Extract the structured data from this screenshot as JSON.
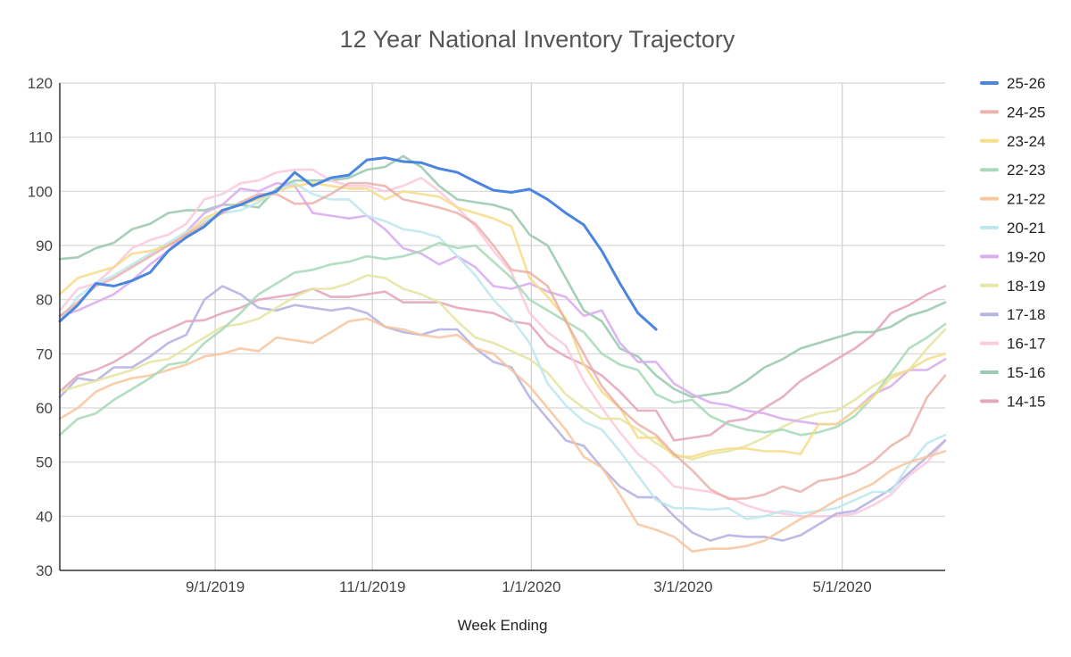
{
  "chart_data": {
    "type": "line",
    "title": "12 Year National Inventory Trajectory",
    "xlabel": "Week Ending",
    "ylabel": "",
    "ylim": [
      30,
      120
    ],
    "yticks": [
      30,
      40,
      50,
      60,
      70,
      80,
      90,
      100,
      110,
      120
    ],
    "x_week_count": 50,
    "x_ticks": [
      {
        "label": "9/1/2019",
        "week": 8.6
      },
      {
        "label": "11/1/2019",
        "week": 17.3
      },
      {
        "label": "1/1/2020",
        "week": 26.1
      },
      {
        "label": "3/1/2020",
        "week": 34.5
      },
      {
        "label": "5/1/2020",
        "week": 43.3
      }
    ],
    "grid": true,
    "legend_position": "right",
    "series": [
      {
        "name": "25-26",
        "color": "#4a86e0",
        "opacity": 1.0,
        "width": 3,
        "values": [
          76,
          79,
          83,
          82.5,
          83.5,
          85,
          89,
          91.5,
          93.5,
          96.5,
          97.5,
          99,
          100,
          103.5,
          101,
          102.5,
          103,
          105.8,
          106.2,
          105.5,
          105.3,
          104.2,
          103.5,
          101.8,
          100.2,
          99.8,
          100.4,
          98.5,
          96,
          93.8,
          89,
          83,
          77.5,
          74.5
        ]
      },
      {
        "name": "24-25",
        "color": "#e8a29b",
        "opacity": 0.72,
        "width": 2.6,
        "values": [
          77,
          79.5,
          82.5,
          84,
          86,
          88,
          90,
          92,
          94,
          96,
          98,
          99.5,
          99.5,
          97.7,
          97.8,
          99.5,
          101.5,
          101.5,
          101,
          98.5,
          97.8,
          97,
          96,
          94,
          90,
          85.5,
          85,
          82.5,
          76,
          70,
          64,
          60,
          57,
          55,
          51.5,
          48.5,
          45,
          43.2,
          43.3,
          44,
          45.5,
          44.5,
          46.5,
          47,
          48,
          50,
          53,
          55,
          62,
          66
        ]
      },
      {
        "name": "23-24",
        "color": "#f7dc85",
        "opacity": 0.85,
        "width": 2.6,
        "values": [
          81,
          84,
          85,
          86,
          88.5,
          89,
          90,
          92,
          95,
          96.5,
          97.5,
          98.5,
          100,
          101,
          101.5,
          101,
          100.5,
          100.5,
          98.5,
          100,
          99.5,
          99,
          97,
          96,
          95,
          93.5,
          84,
          80.5,
          76.5,
          68,
          63,
          60,
          54.5,
          54.5,
          51,
          51,
          52,
          52.5,
          52.5,
          52,
          52,
          51.5,
          57,
          57,
          59.5,
          62,
          65.5,
          67,
          69,
          70
        ]
      },
      {
        "name": "22-23",
        "color": "#a5d8b6",
        "opacity": 0.85,
        "width": 2.6,
        "values": [
          55,
          58,
          59,
          61.5,
          63.5,
          65.5,
          68,
          68.5,
          72,
          74.5,
          77.5,
          81,
          83,
          85,
          85.5,
          86.5,
          87,
          88,
          87.5,
          88,
          89,
          90.5,
          89.5,
          90,
          87,
          84,
          80,
          78,
          76,
          74,
          70,
          68,
          67,
          62.5,
          61,
          61.5,
          58.5,
          57,
          56,
          55.5,
          56,
          55,
          55.5,
          56.5,
          58.5,
          62,
          66.5,
          71,
          73,
          75.5
        ]
      },
      {
        "name": "21-22",
        "color": "#f8c49d",
        "opacity": 0.85,
        "width": 2.6,
        "values": [
          58,
          60,
          63,
          64.5,
          65.5,
          66,
          67,
          68,
          69.5,
          70,
          71,
          70.5,
          73,
          72.5,
          72,
          74,
          76,
          76.5,
          75,
          74.5,
          73.5,
          73,
          73.5,
          71,
          70,
          67,
          64,
          60,
          56,
          51,
          49,
          44,
          38.5,
          37.5,
          36.2,
          33.5,
          34,
          34,
          34.5,
          35.5,
          37.5,
          39.5,
          41,
          43,
          44.5,
          46,
          48.5,
          50,
          51,
          52
        ]
      },
      {
        "name": "20-21",
        "color": "#bfe8ee",
        "opacity": 0.9,
        "width": 2.6,
        "values": [
          76,
          80.5,
          83,
          84.5,
          86.5,
          88.5,
          90.5,
          92.5,
          94.5,
          96,
          96.5,
          98,
          100,
          101.5,
          99.5,
          98.5,
          98.5,
          95.5,
          94.5,
          93,
          92.5,
          91.5,
          88,
          84.5,
          80,
          76.5,
          72,
          64.5,
          60.5,
          57.5,
          56,
          52,
          47.5,
          43,
          41.5,
          41.5,
          41.2,
          41.5,
          39.5,
          40,
          41,
          40.5,
          41,
          41.5,
          43,
          44.5,
          44.5,
          49.5,
          53.5,
          55
        ]
      },
      {
        "name": "19-20",
        "color": "#d9aef0",
        "opacity": 0.9,
        "width": 2.6,
        "values": [
          77,
          78,
          79.5,
          81,
          83.5,
          86.5,
          89,
          92.5,
          96,
          97.5,
          100.5,
          100,
          101.5,
          101,
          96,
          95.5,
          95,
          95.5,
          93,
          89.5,
          88.5,
          86.5,
          88,
          86,
          82.5,
          82,
          83,
          81.5,
          80.5,
          77,
          78,
          72,
          68.5,
          68.5,
          64.5,
          62.5,
          61,
          60.5,
          59.5,
          59,
          58,
          57.5,
          57,
          57,
          59.5,
          62.5,
          64,
          67,
          67,
          69
        ]
      },
      {
        "name": "18-19",
        "color": "#e6e6a5",
        "opacity": 0.9,
        "width": 2.6,
        "values": [
          63,
          64,
          65,
          66,
          67,
          68.5,
          69,
          71,
          73,
          75,
          75.5,
          76.5,
          78.5,
          80.5,
          82,
          82,
          83,
          84.5,
          84,
          82,
          81,
          79.5,
          76,
          73,
          72,
          70.5,
          69,
          66.5,
          62.5,
          60,
          58,
          58,
          56,
          53.5,
          51.5,
          50.5,
          51.5,
          52,
          53,
          54.5,
          56.5,
          58,
          59,
          59.5,
          61.5,
          64,
          66,
          67,
          71,
          74.5
        ]
      },
      {
        "name": "17-18",
        "color": "#b6b4e2",
        "opacity": 0.9,
        "width": 2.6,
        "values": [
          62,
          65.5,
          65,
          67.5,
          67.5,
          69.5,
          72,
          73.5,
          80,
          82.5,
          81,
          78.5,
          78,
          79,
          78.5,
          78,
          78.5,
          77.5,
          75,
          74,
          73.5,
          74.5,
          74.5,
          71,
          68.5,
          67.5,
          62,
          58,
          54,
          53,
          49,
          45.5,
          43.5,
          43.5,
          40,
          37,
          35.5,
          36.5,
          36.2,
          36.2,
          35.5,
          36.5,
          38.5,
          40.5,
          41,
          43,
          45,
          48,
          51,
          54
        ]
      },
      {
        "name": "16-17",
        "color": "#fbcbe0",
        "opacity": 0.9,
        "width": 2.6,
        "values": [
          78,
          82,
          83,
          86,
          89.5,
          91,
          92,
          94,
          98.5,
          99.5,
          101.5,
          102,
          103.5,
          104,
          104,
          102,
          101,
          101,
          100,
          101,
          102.5,
          100,
          97,
          93.5,
          89,
          85,
          77.5,
          74,
          71.5,
          65,
          60,
          55.5,
          51.5,
          49,
          45.5,
          45,
          44.5,
          43.5,
          42,
          41,
          40.5,
          40,
          40,
          40,
          40.5,
          42,
          44,
          47.5,
          50,
          54
        ]
      },
      {
        "name": "15-16",
        "color": "#9ccab0",
        "opacity": 0.9,
        "width": 2.6,
        "values": [
          87.5,
          87.8,
          89.5,
          90.5,
          93,
          94,
          96,
          96.5,
          96.5,
          97.5,
          97.5,
          97,
          100.5,
          102,
          102,
          102,
          102.5,
          104,
          104.5,
          106.5,
          104.5,
          101,
          98.5,
          98,
          97.5,
          96.5,
          92,
          90,
          84,
          78,
          76,
          71,
          69.5,
          66,
          63.5,
          62,
          62.5,
          63,
          65,
          67.5,
          69,
          71,
          72,
          73,
          74,
          74,
          75,
          77,
          78,
          79.5
        ]
      },
      {
        "name": "14-15",
        "color": "#e4a7bf",
        "opacity": 0.9,
        "width": 2.6,
        "values": [
          63,
          66,
          67,
          68.5,
          70.5,
          73,
          74.5,
          76,
          76.2,
          77.5,
          78.5,
          80,
          80.5,
          81,
          82,
          80.5,
          80.5,
          81,
          81.5,
          79.5,
          79.5,
          79.5,
          78.5,
          78,
          77.5,
          76,
          75.5,
          71.5,
          69.5,
          68,
          66,
          63,
          59.5,
          59.5,
          54,
          54.5,
          55,
          57.5,
          58,
          60,
          62,
          65,
          67,
          69,
          71,
          73.5,
          77.5,
          79,
          81,
          82.5
        ]
      }
    ]
  }
}
